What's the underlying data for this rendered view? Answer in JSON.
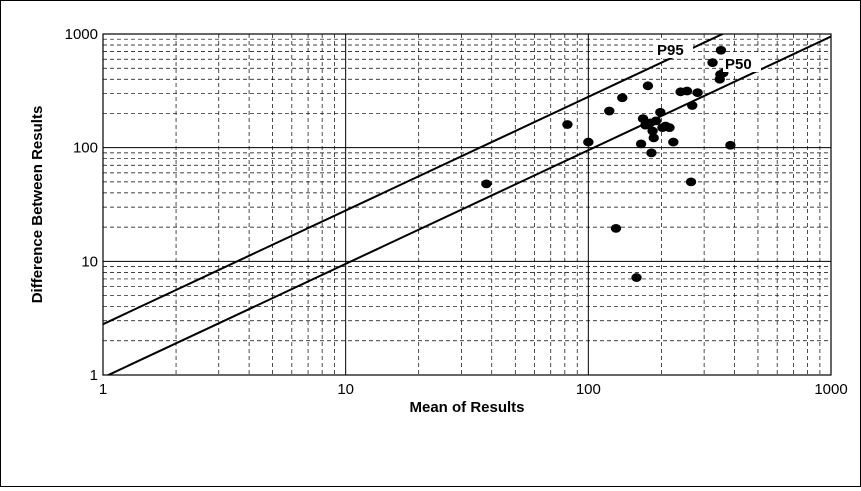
{
  "chart_data": {
    "type": "scatter",
    "title": "",
    "xlabel": "Mean of Results",
    "ylabel": "Difference Between Results",
    "xscale": "log",
    "yscale": "log",
    "xlim": [
      1,
      1000
    ],
    "ylim": [
      1,
      1000
    ],
    "x_ticks": [
      "1",
      "10",
      "100",
      "1000"
    ],
    "y_ticks": [
      "1",
      "10",
      "100",
      "1000"
    ],
    "grid": true,
    "reference_lines": [
      {
        "label": "P95",
        "slope": 1,
        "intercept_at_x1": 2.8
      },
      {
        "label": "P50",
        "slope": 1,
        "intercept_at_x1": 0.95
      }
    ],
    "points": [
      [
        38,
        48
      ],
      [
        82,
        160
      ],
      [
        100,
        112
      ],
      [
        122,
        210
      ],
      [
        130,
        19.5
      ],
      [
        138,
        275
      ],
      [
        158,
        7.2
      ],
      [
        165,
        108
      ],
      [
        168,
        180
      ],
      [
        172,
        158
      ],
      [
        176,
        350
      ],
      [
        180,
        165
      ],
      [
        182,
        90
      ],
      [
        184,
        140
      ],
      [
        186,
        122
      ],
      [
        190,
        172
      ],
      [
        198,
        205
      ],
      [
        202,
        150
      ],
      [
        208,
        155
      ],
      [
        216,
        150
      ],
      [
        224,
        112
      ],
      [
        240,
        310
      ],
      [
        255,
        315
      ],
      [
        265,
        50
      ],
      [
        268,
        235
      ],
      [
        282,
        305
      ],
      [
        325,
        560
      ],
      [
        348,
        400
      ],
      [
        350,
        440
      ],
      [
        352,
        720
      ],
      [
        360,
        455
      ],
      [
        385,
        105
      ]
    ]
  }
}
